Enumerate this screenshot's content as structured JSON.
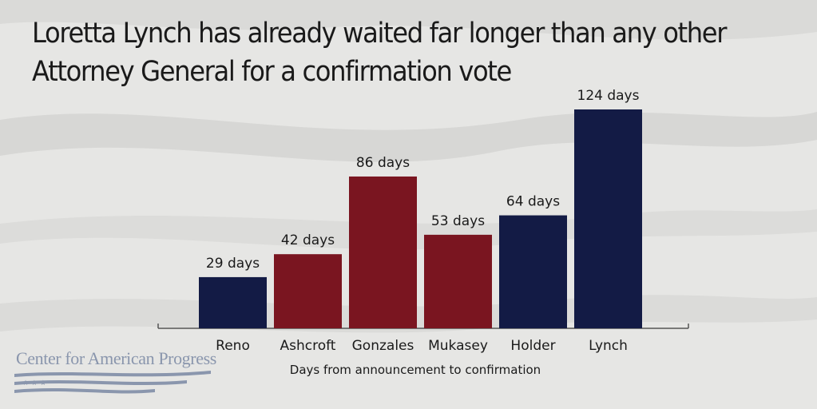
{
  "colors": {
    "background": "#e6e6e4",
    "navy": "#131b45",
    "red": "#7a1520",
    "text": "#1a1a1a",
    "logo": "#8a96ad"
  },
  "title_lines": [
    "Loretta Lynch has already waited far longer than any other",
    "Attorney General for a confirmation vote"
  ],
  "logo": {
    "text": "Center for American Progress"
  },
  "chart_data": {
    "type": "bar",
    "title": "Loretta Lynch has already waited far longer than any other Attorney General for a confirmation vote",
    "xlabel": "Days from announcement to confirmation",
    "ylabel": "",
    "categories": [
      "Reno",
      "Ashcroft",
      "Gonzales",
      "Mukasey",
      "Holder",
      "Lynch"
    ],
    "values": [
      29,
      42,
      86,
      53,
      64,
      124
    ],
    "data_labels": [
      "29 days",
      "42 days",
      "86 days",
      "53 days",
      "64 days",
      "124 days"
    ],
    "bar_colors": [
      "#131b45",
      "#7a1520",
      "#7a1520",
      "#7a1520",
      "#131b45",
      "#131b45"
    ],
    "ylim": [
      0,
      124
    ],
    "grid": false,
    "legend": "none"
  }
}
